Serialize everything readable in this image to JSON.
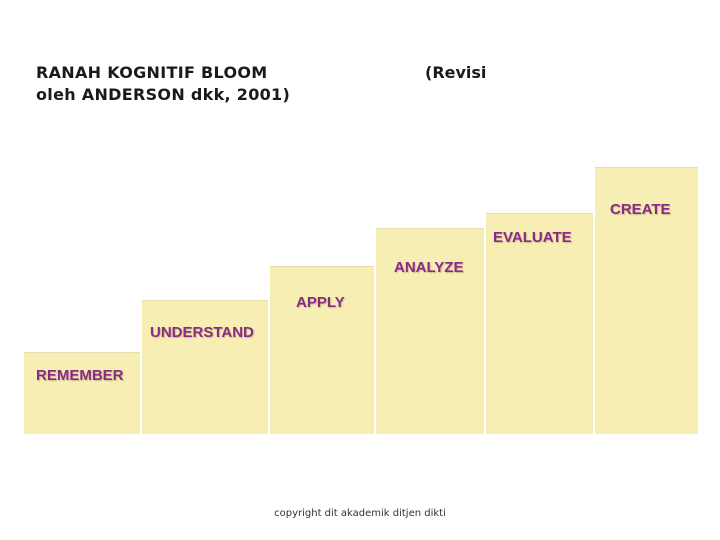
{
  "title": {
    "line1": "RANAH KOGNITIF BLOOM",
    "line2": "oleh ANDERSON dkk, 2001)",
    "right": "(Revisi"
  },
  "levels": [
    {
      "label": "REMEMBER"
    },
    {
      "label": "UNDERSTAND"
    },
    {
      "label": "APPLY"
    },
    {
      "label": "ANALYZE"
    },
    {
      "label": "EVALUATE"
    },
    {
      "label": "CREATE"
    }
  ],
  "footer": "copyright dit akademik ditjen dikti",
  "colors": {
    "step_fill": "#f7eeb4",
    "label": "#8b2a86"
  }
}
